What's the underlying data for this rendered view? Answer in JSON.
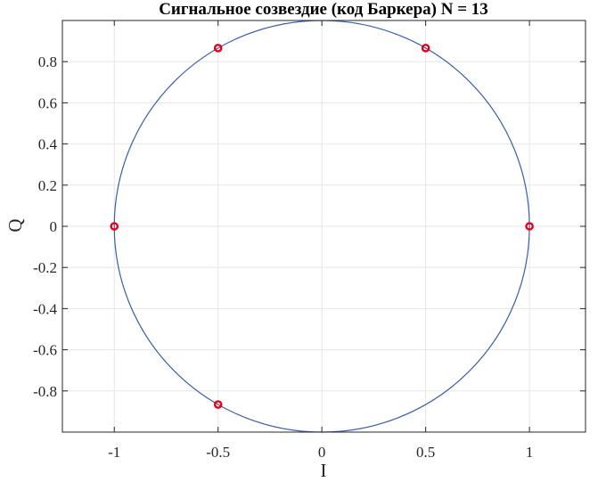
{
  "chart_data": {
    "type": "scatter",
    "title": "Сигнальное созвездие (код Баркера)   N = 13",
    "xlabel": "I",
    "ylabel": "Q",
    "xlim": [
      -1.25,
      1.27
    ],
    "ylim": [
      -1.0,
      1.0
    ],
    "grid": true,
    "xticks": [
      -1,
      -0.5,
      0,
      0.5,
      1
    ],
    "xtick_labels": [
      "-1",
      "-0.5",
      "0",
      "0.5",
      "1"
    ],
    "yticks": [
      -0.8,
      -0.6,
      -0.4,
      -0.2,
      0,
      0.2,
      0.4,
      0.6,
      0.8
    ],
    "ytick_labels": [
      "-0.8",
      "-0.6",
      "-0.4",
      "-0.2",
      "0",
      "0.2",
      "0.4",
      "0.6",
      "0.8"
    ],
    "unit_circle": {
      "cx": 0,
      "cy": 0,
      "r": 1,
      "color": "#3a5fa8"
    },
    "points": {
      "color": "#e3001b",
      "x": [
        1,
        0.5,
        -0.5,
        -1,
        -0.5
      ],
      "y": [
        0,
        0.866,
        0.866,
        0,
        -0.866
      ]
    }
  }
}
